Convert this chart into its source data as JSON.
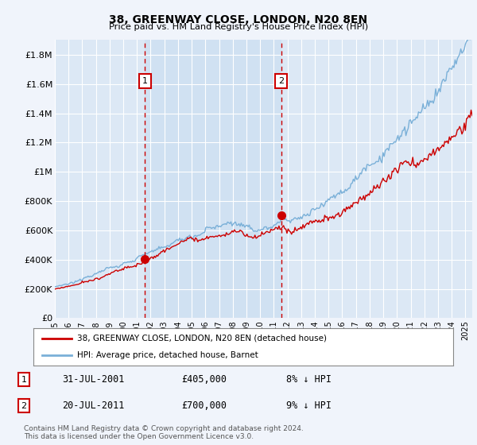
{
  "title": "38, GREENWAY CLOSE, LONDON, N20 8EN",
  "subtitle": "Price paid vs. HM Land Registry's House Price Index (HPI)",
  "background_color": "#f0f4fb",
  "plot_bg_color": "#dce8f5",
  "ylim": [
    0,
    1900000
  ],
  "yticks": [
    0,
    200000,
    400000,
    600000,
    800000,
    1000000,
    1200000,
    1400000,
    1600000,
    1800000
  ],
  "ytick_labels": [
    "£0",
    "£200K",
    "£400K",
    "£600K",
    "£800K",
    "£1M",
    "£1.2M",
    "£1.4M",
    "£1.6M",
    "£1.8M"
  ],
  "xlim_start": 1995.0,
  "xlim_end": 2025.5,
  "transaction1_x": 2001.58,
  "transaction1_y": 405000,
  "transaction2_x": 2011.55,
  "transaction2_y": 700000,
  "legend_line1": "38, GREENWAY CLOSE, LONDON, N20 8EN (detached house)",
  "legend_line2": "HPI: Average price, detached house, Barnet",
  "annotation1_label": "1",
  "annotation1_date": "31-JUL-2001",
  "annotation1_price": "£405,000",
  "annotation1_hpi": "8% ↓ HPI",
  "annotation2_label": "2",
  "annotation2_date": "20-JUL-2011",
  "annotation2_price": "£700,000",
  "annotation2_hpi": "9% ↓ HPI",
  "footer": "Contains HM Land Registry data © Crown copyright and database right 2024.\nThis data is licensed under the Open Government Licence v3.0.",
  "line_red_color": "#cc0000",
  "line_blue_color": "#7ab0d8",
  "shade_color": "#c8ddf0",
  "dashed_line_color": "#cc0000"
}
